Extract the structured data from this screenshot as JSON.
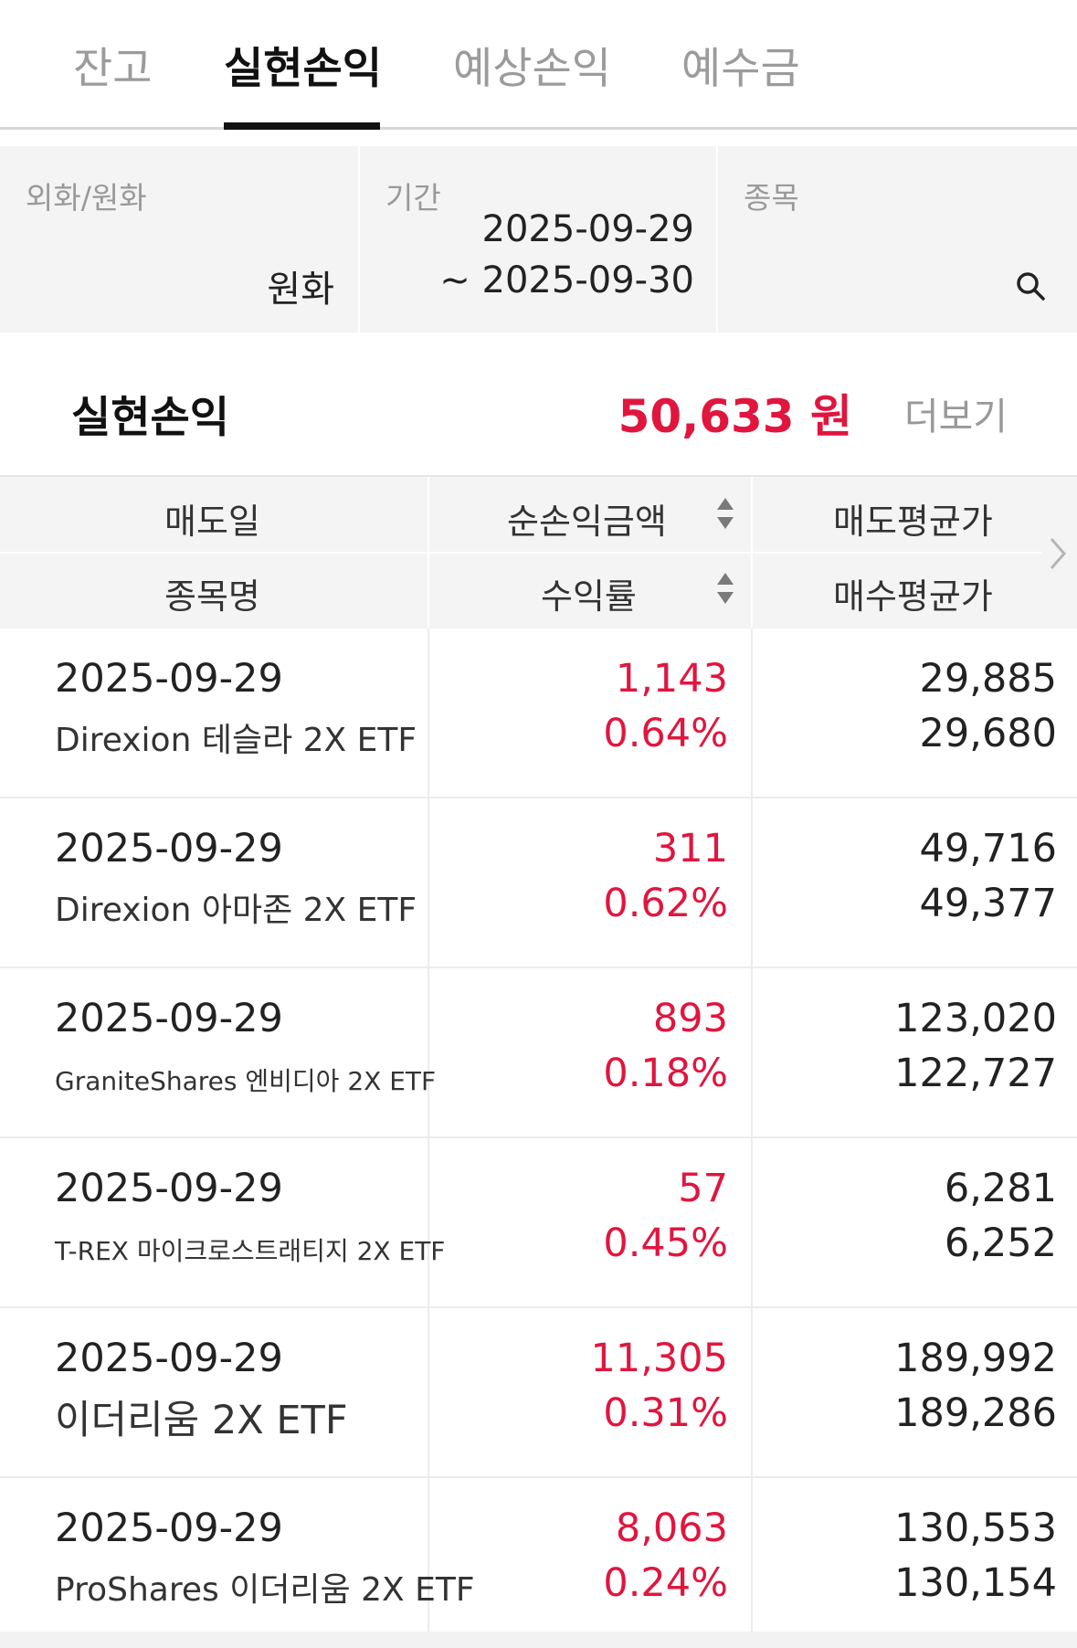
{
  "tabs": [
    {
      "label": "잔고",
      "active": false
    },
    {
      "label": "실현손익",
      "active": true
    },
    {
      "label": "예상손익",
      "active": false
    },
    {
      "label": "예수금",
      "active": false
    }
  ],
  "filters": {
    "currency": {
      "label": "외화/원화",
      "value": "원화"
    },
    "period": {
      "label": "기간",
      "start": "2025-09-29",
      "end": "~ 2025-09-30"
    },
    "stock": {
      "label": "종목",
      "icon": "search-icon"
    }
  },
  "summary": {
    "title": "실현손익",
    "amount": "50,633 원",
    "more_label": "더보기",
    "amount_color": "#e0163f"
  },
  "table": {
    "headers": {
      "col1_top": "매도일",
      "col1_bottom": "종목명",
      "col2_top": "순손익금액",
      "col2_bottom": "수익률",
      "col3_top": "매도평균가",
      "col3_bottom": "매수평균가"
    },
    "rows": [
      {
        "date": "2025-09-29",
        "name": "Direxion 테슬라 2X ETF",
        "pl": "1,143",
        "rate": "0.64%",
        "sell_avg": "29,885",
        "buy_avg": "29,680"
      },
      {
        "date": "2025-09-29",
        "name": "Direxion 아마존 2X ETF",
        "pl": "311",
        "rate": "0.62%",
        "sell_avg": "49,716",
        "buy_avg": "49,377"
      },
      {
        "date": "2025-09-29",
        "name": "GraniteShares 엔비디아 2X ETF",
        "pl": "893",
        "rate": "0.18%",
        "sell_avg": "123,020",
        "buy_avg": "122,727"
      },
      {
        "date": "2025-09-29",
        "name": "T-REX 마이크로스트래티지 2X ETF",
        "pl": "57",
        "rate": "0.45%",
        "sell_avg": "6,281",
        "buy_avg": "6,252"
      },
      {
        "date": "2025-09-29",
        "name": "이더리움 2X ETF",
        "pl": "11,305",
        "rate": "0.31%",
        "sell_avg": "189,992",
        "buy_avg": "189,286"
      },
      {
        "date": "2025-09-29",
        "name": "ProShares 이더리움 2X ETF",
        "pl": "8,063",
        "rate": "0.24%",
        "sell_avg": "130,553",
        "buy_avg": "130,154"
      }
    ]
  }
}
